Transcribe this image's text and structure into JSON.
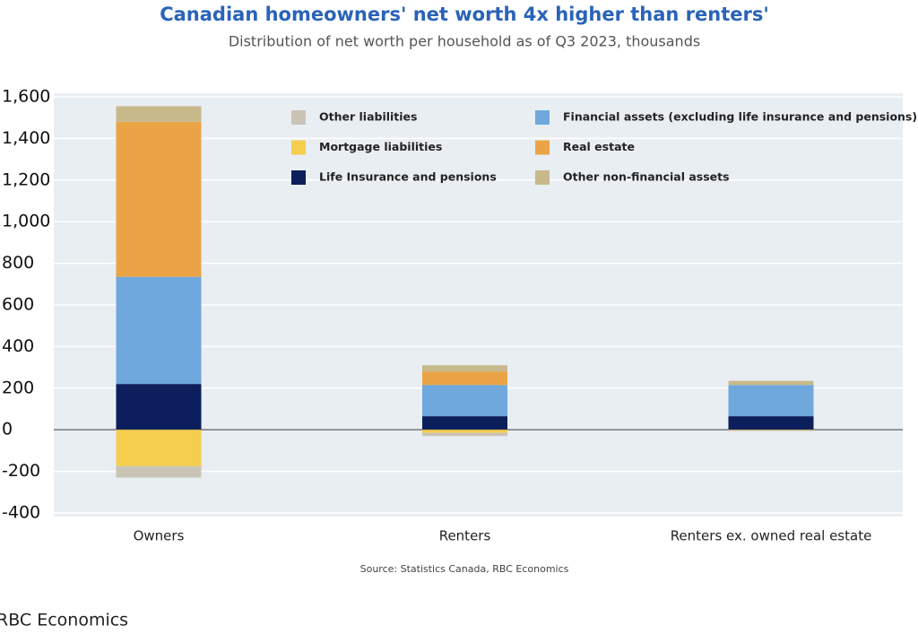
{
  "chart_data": {
    "type": "stacked-bar",
    "title": "Canadian homeowners' net worth 4x higher than renters'",
    "subtitle": "Distribution of net worth per household as of Q3 2023, thousands",
    "source": "Source: Statistics Canada, RBC Economics",
    "footer": "RBC Economics",
    "categories": [
      "Owners",
      "Renters",
      "Renters ex. owned real estate"
    ],
    "series": [
      {
        "name": "Other liabilities",
        "color": "#c9c4b6",
        "values": [
          -55,
          -15,
          -3
        ]
      },
      {
        "name": "Mortgage liabilities",
        "color": "#f5cd4f",
        "values": [
          -175,
          -15,
          -3
        ]
      },
      {
        "name": "Life Insurance and pensions",
        "color": "#0c1f5c",
        "values": [
          220,
          65,
          65
        ]
      },
      {
        "name": "Financial assets (excluding life insurance and pensions)",
        "color": "#6fa8dc",
        "values": [
          515,
          150,
          150
        ]
      },
      {
        "name": "Real estate",
        "color": "#eaa446",
        "values": [
          745,
          65,
          0
        ]
      },
      {
        "name": "Other non-financial assets",
        "color": "#c8b98a",
        "values": [
          75,
          30,
          20
        ]
      }
    ],
    "ylim": [
      -400,
      1600
    ],
    "yticks": [
      -400,
      -200,
      0,
      200,
      400,
      600,
      800,
      {
        "value": 1000,
        "label": "1,000"
      },
      {
        "value": 1200,
        "label": "1,200"
      },
      {
        "value": 1400,
        "label": "1,400"
      },
      {
        "value": 1600,
        "label": "1,600"
      }
    ],
    "grid": true
  }
}
